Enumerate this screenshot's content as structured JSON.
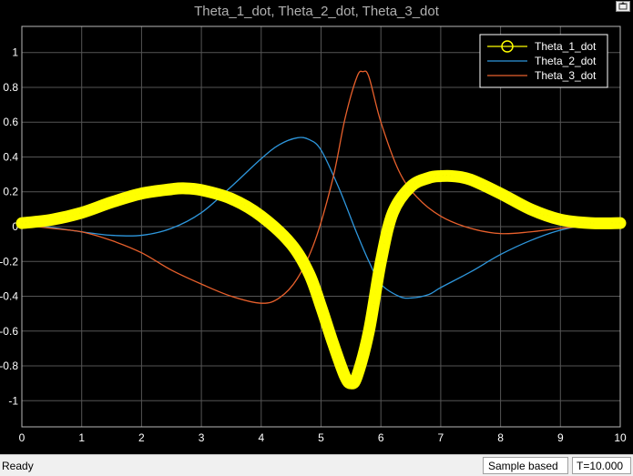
{
  "window": {
    "title": "Theta_1_dot, Theta_2_dot, Theta_3_dot",
    "background": "#000000",
    "grid_color": "#555555"
  },
  "status_bar": {
    "status": "Ready",
    "mode": "Sample based",
    "time": "T=10.000"
  },
  "chart_data": {
    "type": "line",
    "title": "Theta_1_dot, Theta_2_dot, Theta_3_dot",
    "xlabel": "",
    "ylabel": "",
    "xlim": [
      0,
      10
    ],
    "ylim": [
      -1.15,
      1.15
    ],
    "grid": true,
    "legend_position": "top-right",
    "xticks": [
      0,
      1,
      2,
      3,
      4,
      5,
      6,
      7,
      8,
      9,
      10
    ],
    "yticks": [
      -1,
      -0.8,
      -0.6,
      -0.4,
      -0.2,
      0,
      0.2,
      0.4,
      0.6,
      0.8,
      1
    ],
    "ytick_labels": [
      "-1",
      "-0.8",
      "-0.6",
      "-0.4",
      "-0.2",
      "0",
      "0.2",
      "0.4",
      "0.6",
      "0.8",
      "1"
    ],
    "series": [
      {
        "name": "Theta_1_dot",
        "color": "#ffff00",
        "marker": "circle",
        "x": [
          0,
          0.5,
          1,
          1.5,
          2,
          2.5,
          2.7,
          3,
          3.5,
          4,
          4.5,
          4.8,
          5,
          5.2,
          5.4,
          5.5,
          5.6,
          5.8,
          6,
          6.2,
          6.5,
          6.8,
          7,
          7.2,
          7.5,
          8,
          8.5,
          9,
          9.5,
          10
        ],
        "y": [
          0.02,
          0.04,
          0.08,
          0.14,
          0.19,
          0.215,
          0.22,
          0.21,
          0.16,
          0.06,
          -0.1,
          -0.27,
          -0.46,
          -0.67,
          -0.86,
          -0.9,
          -0.86,
          -0.6,
          -0.2,
          0.08,
          0.23,
          0.28,
          0.29,
          0.29,
          0.27,
          0.19,
          0.1,
          0.04,
          0.02,
          0.02
        ]
      },
      {
        "name": "Theta_2_dot",
        "color": "#2e97dd",
        "x": [
          0,
          0.5,
          1,
          1.5,
          2,
          2.5,
          3,
          3.5,
          4,
          4.3,
          4.6,
          4.8,
          5,
          5.3,
          5.6,
          5.8,
          6,
          6.3,
          6.5,
          6.8,
          7,
          7.5,
          8,
          8.5,
          9,
          9.5,
          10
        ],
        "y": [
          0.01,
          -0.005,
          -0.03,
          -0.05,
          -0.05,
          -0.01,
          0.08,
          0.23,
          0.39,
          0.47,
          0.51,
          0.5,
          0.44,
          0.22,
          -0.04,
          -0.2,
          -0.33,
          -0.4,
          -0.41,
          -0.39,
          -0.35,
          -0.26,
          -0.16,
          -0.08,
          -0.02,
          0.01,
          0.01
        ]
      },
      {
        "name": "Theta_3_dot",
        "color": "#e8602c",
        "x": [
          0,
          0.5,
          1,
          1.5,
          2,
          2.5,
          3,
          3.5,
          4,
          4.3,
          4.6,
          4.9,
          5.2,
          5.4,
          5.6,
          5.7,
          5.8,
          6,
          6.3,
          6.6,
          7,
          7.5,
          8,
          8.5,
          9,
          9.5,
          10
        ],
        "y": [
          0.01,
          -0.01,
          -0.03,
          -0.08,
          -0.15,
          -0.25,
          -0.33,
          -0.4,
          -0.44,
          -0.41,
          -0.3,
          -0.08,
          0.28,
          0.62,
          0.86,
          0.89,
          0.86,
          0.6,
          0.32,
          0.17,
          0.06,
          -0.01,
          -0.04,
          -0.03,
          -0.01,
          0.005,
          0.01
        ]
      }
    ]
  }
}
